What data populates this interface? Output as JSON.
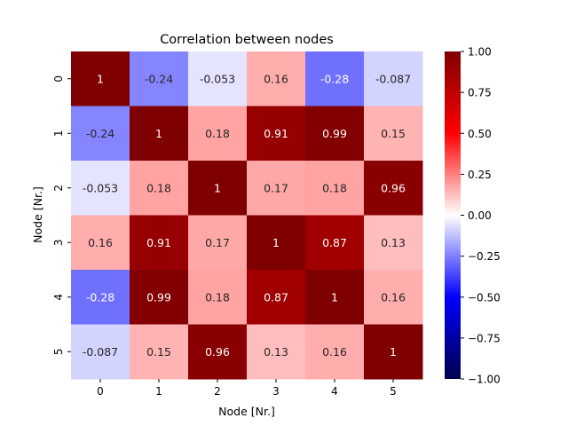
{
  "chart_data": {
    "type": "heatmap",
    "title": "Correlation between nodes",
    "xlabel": "Node [Nr.]",
    "ylabel": "Node [Nr.]",
    "x_categories": [
      "0",
      "1",
      "2",
      "3",
      "4",
      "5"
    ],
    "y_categories": [
      "0",
      "1",
      "2",
      "3",
      "4",
      "5"
    ],
    "values": [
      [
        1,
        -0.24,
        -0.053,
        0.16,
        -0.28,
        -0.087
      ],
      [
        -0.24,
        1,
        0.18,
        0.91,
        0.99,
        0.15
      ],
      [
        -0.053,
        0.18,
        1,
        0.17,
        0.18,
        0.96
      ],
      [
        0.16,
        0.91,
        0.17,
        1,
        0.87,
        0.13
      ],
      [
        -0.28,
        0.99,
        0.18,
        0.87,
        1,
        0.16
      ],
      [
        -0.087,
        0.15,
        0.96,
        0.13,
        0.16,
        1
      ]
    ],
    "cell_labels": [
      [
        "1",
        "-0.24",
        "-0.053",
        "0.16",
        "-0.28",
        "-0.087"
      ],
      [
        "-0.24",
        "1",
        "0.18",
        "0.91",
        "0.99",
        "0.15"
      ],
      [
        "-0.053",
        "0.18",
        "1",
        "0.17",
        "0.18",
        "0.96"
      ],
      [
        "0.16",
        "0.91",
        "0.17",
        "1",
        "0.87",
        "0.13"
      ],
      [
        "-0.28",
        "0.99",
        "0.18",
        "0.87",
        "1",
        "0.16"
      ],
      [
        "-0.087",
        "0.15",
        "0.96",
        "0.13",
        "0.16",
        "1"
      ]
    ],
    "colormap": "seismic",
    "colormap_stops": [
      "#00004c",
      "#0000ff",
      "#ffffff",
      "#ff0000",
      "#7f0000"
    ],
    "vmin": -1,
    "vmax": 1,
    "colorbar_ticks": [
      "1.00",
      "0.75",
      "0.50",
      "0.25",
      "0.00",
      "−0.25",
      "−0.50",
      "−0.75",
      "−1.00"
    ],
    "colorbar_tick_values": [
      1,
      0.75,
      0.5,
      0.25,
      0,
      -0.25,
      -0.5,
      -0.75,
      -1
    ],
    "legend": "colorbar-right",
    "grid": false
  }
}
